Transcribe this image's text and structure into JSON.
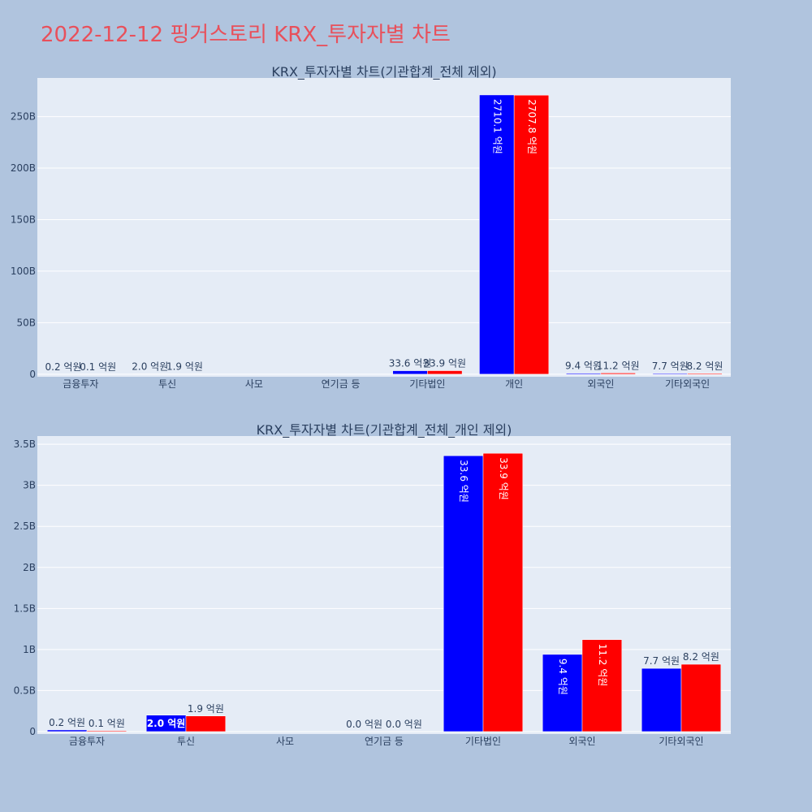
{
  "title": "2022-12-12 핑거스토리 KRX_투자자별 차트",
  "colors": {
    "buy": "#0000ff",
    "sell": "#ff0000",
    "background": "#b0c4de",
    "plot_bg": "#e5ecf6",
    "title": "#e8505b",
    "text": "#2a3f5f"
  },
  "chart_data": [
    {
      "type": "bar",
      "title": "KRX_투자자별 차트(기관합계_전체 제외)",
      "categories": [
        "금융투자",
        "투신",
        "사모",
        "연기금 등",
        "기타법인",
        "개인",
        "외국인",
        "기타외국인"
      ],
      "series": [
        {
          "values": [
            0.02,
            0.2,
            0,
            0,
            3.36,
            271.01,
            0.94,
            0.77
          ],
          "labels": [
            "0.2 억원",
            "2.0 억원",
            "",
            "",
            "33.6 억원",
            "2710.1 억원",
            "9.4 억원",
            "7.7 억원"
          ]
        },
        {
          "values": [
            0.01,
            0.19,
            0,
            0,
            3.39,
            270.78,
            1.12,
            0.82
          ],
          "labels": [
            "0.1 억원",
            "1.9 억원",
            "",
            "",
            "33.9 억원",
            "2707.8 억원",
            "11.2 억원",
            "8.2 억원"
          ]
        }
      ],
      "y_ticks": [
        {
          "value": 0,
          "label": "0"
        },
        {
          "value": 50,
          "label": "50B"
        },
        {
          "value": 100,
          "label": "100B"
        },
        {
          "value": 150,
          "label": "150B"
        },
        {
          "value": 200,
          "label": "200B"
        },
        {
          "value": 250,
          "label": "250B"
        }
      ],
      "ylim": [
        -2.5,
        287.5
      ],
      "grid": true
    },
    {
      "type": "bar",
      "title": "KRX_투자자별 차트(기관합계_전체_개인 제외)",
      "categories": [
        "금융투자",
        "투신",
        "사모",
        "연기금 등",
        "기타법인",
        "외국인",
        "기타외국인"
      ],
      "series": [
        {
          "values": [
            0.02,
            0.2,
            0,
            0.002,
            3.36,
            0.94,
            0.77
          ],
          "labels": [
            "0.2 억원",
            "2.0 억원",
            "",
            "0.0 억원",
            "33.6 억원",
            "9.4 억원",
            "7.7 억원"
          ]
        },
        {
          "values": [
            0.01,
            0.19,
            0,
            0.002,
            3.39,
            1.12,
            0.82
          ],
          "labels": [
            "0.1 억원",
            "1.9 억원",
            "",
            "0.0 억원",
            "33.9 억원",
            "11.2 억원",
            "8.2 억원"
          ]
        }
      ],
      "y_ticks": [
        {
          "value": 0,
          "label": "0"
        },
        {
          "value": 0.5,
          "label": "0.5B"
        },
        {
          "value": 1,
          "label": "1B"
        },
        {
          "value": 1.5,
          "label": "1.5B"
        },
        {
          "value": 2,
          "label": "2B"
        },
        {
          "value": 2.5,
          "label": "2.5B"
        },
        {
          "value": 3,
          "label": "3B"
        },
        {
          "value": 3.5,
          "label": "3.5B"
        }
      ],
      "ylim": [
        -0.03,
        3.6
      ],
      "grid": true
    }
  ]
}
